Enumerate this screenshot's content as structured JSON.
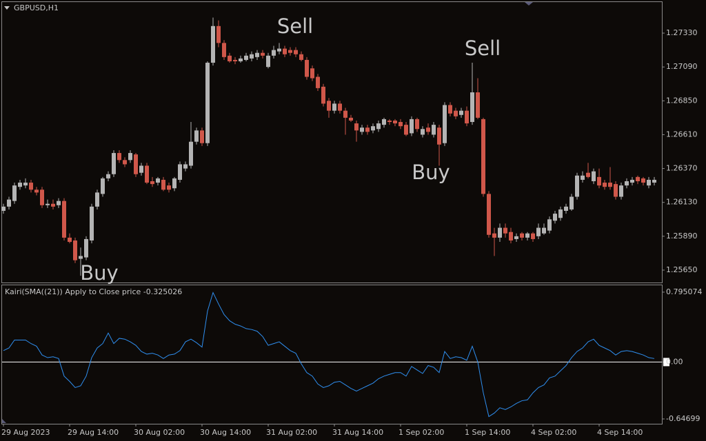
{
  "chart_data": [
    {
      "type": "candlestick",
      "title": "GBPUSD,H1",
      "categories": [
        "29 Aug 2023",
        null,
        null,
        null,
        null,
        null,
        null,
        null,
        null,
        null,
        null,
        null,
        "29 Aug 14:00",
        null,
        null,
        null,
        null,
        null,
        null,
        null,
        null,
        null,
        null,
        null,
        "30 Aug 02:00",
        null,
        null,
        null,
        null,
        null,
        null,
        null,
        null,
        null,
        null,
        null,
        "30 Aug 14:00",
        null,
        null,
        null,
        null,
        null,
        null,
        null,
        null,
        null,
        null,
        null,
        "31 Aug 02:00",
        null,
        null,
        null,
        null,
        null,
        null,
        null,
        null,
        null,
        null,
        null,
        "31 Aug 14:00",
        null,
        null,
        null,
        null,
        null,
        null,
        null,
        null,
        null,
        null,
        null,
        "1 Sep 02:00",
        null,
        null,
        null,
        null,
        null,
        null,
        null,
        null,
        null,
        null,
        null,
        "1 Sep 14:00",
        null,
        null,
        null,
        null,
        null,
        null,
        null,
        null,
        null,
        null,
        null,
        "4 Sep 02:00",
        null,
        null,
        null,
        null,
        null,
        null,
        null,
        null,
        null,
        null,
        null,
        "4 Sep 14:00",
        null,
        null,
        null,
        null,
        null,
        null,
        null,
        null,
        null,
        null
      ],
      "open": [
        1.2607,
        1.261,
        1.2614,
        1.2624,
        1.2625,
        1.2627,
        1.2622,
        1.2622,
        1.2611,
        1.2612,
        1.2611,
        1.2614,
        1.2588,
        1.2586,
        1.2573,
        1.2574,
        1.2586,
        1.261,
        1.2619,
        1.263,
        1.2633,
        1.2648,
        1.2643,
        1.2643,
        1.2647,
        1.2634,
        1.2639,
        1.2628,
        1.2627,
        1.2629,
        1.2625,
        1.2623,
        1.2629,
        1.2637,
        1.2639,
        1.2656,
        1.2664,
        1.2655,
        1.2712,
        1.2738,
        1.2726,
        1.2717,
        1.2714,
        1.2713,
        1.2714,
        1.2715,
        1.2716,
        1.2719,
        1.2709,
        1.2717,
        1.272,
        1.2722,
        1.2721,
        1.2721,
        1.2718,
        1.2714,
        1.2708,
        1.2702,
        1.2695,
        1.2685,
        1.2678,
        1.2683,
        1.2678,
        1.2673,
        1.2669,
        1.2663,
        1.2666,
        1.2664,
        1.2665,
        1.2668,
        1.2671,
        1.2671,
        1.267,
        1.2668,
        1.2662,
        1.2672,
        1.2661,
        1.2666,
        1.2661,
        1.2666,
        1.2655,
        1.2682,
        1.2678,
        1.2675,
        1.2678,
        1.267,
        1.2691,
        1.2672,
        1.2619,
        1.2591,
        1.2588,
        1.2595,
        1.2592,
        1.2587,
        1.2591,
        1.2588,
        1.2591,
        1.2589,
        1.2591,
        1.2593,
        1.26,
        1.2602,
        1.2607,
        1.2608,
        1.2617,
        1.2629,
        1.2634,
        1.2628,
        1.2631,
        1.2627,
        1.2627,
        1.2626,
        1.2617,
        1.2625,
        1.2627,
        1.2631,
        1.263,
        1.2625,
        1.2627
      ],
      "high": [
        1.2612,
        1.2617,
        1.2627,
        1.2629,
        1.263,
        1.2629,
        1.2624,
        1.2624,
        1.2615,
        1.2615,
        1.2616,
        1.2616,
        1.2591,
        1.2588,
        1.2581,
        1.2589,
        1.2612,
        1.2622,
        1.2631,
        1.2635,
        1.265,
        1.265,
        1.2645,
        1.265,
        1.2648,
        1.2641,
        1.2641,
        1.2631,
        1.2631,
        1.2631,
        1.2627,
        1.2631,
        1.2642,
        1.2642,
        1.267,
        1.2666,
        1.2666,
        1.2713,
        1.2744,
        1.2742,
        1.2728,
        1.2719,
        1.2716,
        1.2717,
        1.2719,
        1.272,
        1.2721,
        1.2721,
        1.2719,
        1.2724,
        1.2726,
        1.2724,
        1.2723,
        1.2723,
        1.272,
        1.2716,
        1.271,
        1.2704,
        1.2697,
        1.2687,
        1.2685,
        1.2685,
        1.268,
        1.2675,
        1.2671,
        1.2668,
        1.2668,
        1.2669,
        1.2671,
        1.2673,
        1.2672,
        1.2672,
        1.2672,
        1.267,
        1.2674,
        1.2673,
        1.2667,
        1.2669,
        1.267,
        1.2668,
        1.2684,
        1.2684,
        1.268,
        1.268,
        1.2681,
        1.2712,
        1.2701,
        1.2673,
        1.2621,
        1.2595,
        1.2598,
        1.2598,
        1.2595,
        1.2591,
        1.2592,
        1.2592,
        1.2592,
        1.2598,
        1.2598,
        1.2603,
        1.2607,
        1.261,
        1.2612,
        1.2619,
        1.2634,
        1.2635,
        1.2641,
        1.2637,
        1.2637,
        1.2629,
        1.2638,
        1.2628,
        1.2627,
        1.263,
        1.2631,
        1.2632,
        1.2631,
        1.2631,
        1.2631
      ],
      "low": [
        1.2605,
        1.2608,
        1.2612,
        1.2622,
        1.2623,
        1.262,
        1.2618,
        1.2609,
        1.2609,
        1.2608,
        1.2609,
        1.2586,
        1.2584,
        1.257,
        1.2561,
        1.2572,
        1.2584,
        1.2608,
        1.2617,
        1.2628,
        1.2631,
        1.2641,
        1.2638,
        1.2641,
        1.2631,
        1.2632,
        1.2626,
        1.2624,
        1.2625,
        1.2621,
        1.262,
        1.2621,
        1.2627,
        1.2635,
        1.2637,
        1.2654,
        1.2653,
        1.2653,
        1.271,
        1.2723,
        1.2714,
        1.2712,
        1.2711,
        1.2712,
        1.2713,
        1.2713,
        1.2714,
        1.2715,
        1.2708,
        1.2715,
        1.2718,
        1.2716,
        1.2717,
        1.2716,
        1.2713,
        1.27,
        1.2699,
        1.2692,
        1.2681,
        1.2673,
        1.2676,
        1.2676,
        1.2661,
        1.267,
        1.2656,
        1.2661,
        1.2661,
        1.2662,
        1.2663,
        1.2666,
        1.2668,
        1.2667,
        1.2665,
        1.266,
        1.266,
        1.2663,
        1.2659,
        1.2661,
        1.2659,
        1.2639,
        1.2653,
        1.2674,
        1.2672,
        1.2673,
        1.2667,
        1.2668,
        1.2672,
        1.2617,
        1.2588,
        1.2575,
        1.2585,
        1.2588,
        1.2584,
        1.2585,
        1.2586,
        1.2586,
        1.2585,
        1.2587,
        1.259,
        1.2591,
        1.2598,
        1.26,
        1.2605,
        1.2607,
        1.2615,
        1.2627,
        1.263,
        1.2626,
        1.2623,
        1.2622,
        1.2622,
        1.2615,
        1.2615,
        1.2623,
        1.2625,
        1.2626,
        1.2625,
        1.2623,
        1.2625
      ],
      "close": [
        1.261,
        1.2615,
        1.2625,
        1.2627,
        1.2627,
        1.2622,
        1.262,
        1.2611,
        1.2612,
        1.261,
        1.2614,
        1.2588,
        1.2585,
        1.2572,
        1.2575,
        1.2587,
        1.261,
        1.262,
        1.263,
        1.2633,
        1.2648,
        1.2643,
        1.264,
        1.2648,
        1.2633,
        1.2639,
        1.2627,
        1.2626,
        1.263,
        1.2622,
        1.2622,
        1.263,
        1.264,
        1.264,
        1.2656,
        1.2664,
        1.2655,
        1.2712,
        1.2738,
        1.2726,
        1.2716,
        1.2713,
        1.2713,
        1.2715,
        1.2717,
        1.2718,
        1.2719,
        1.2717,
        1.2717,
        1.2721,
        1.2722,
        1.2718,
        1.2719,
        1.2718,
        1.2714,
        1.2702,
        1.2701,
        1.2694,
        1.2683,
        1.2678,
        1.2683,
        1.2678,
        1.2673,
        1.2671,
        1.2664,
        1.2666,
        1.2663,
        1.2667,
        1.2669,
        1.2672,
        1.267,
        1.2669,
        1.2667,
        1.2661,
        1.2672,
        1.2665,
        1.2665,
        1.2663,
        1.2668,
        1.2654,
        1.2682,
        1.2676,
        1.2674,
        1.2678,
        1.2669,
        1.2691,
        1.2673,
        1.2619,
        1.259,
        1.2588,
        1.2595,
        1.2591,
        1.2586,
        1.2589,
        1.2588,
        1.2591,
        1.2587,
        1.2595,
        1.2595,
        1.2601,
        1.2605,
        1.2608,
        1.261,
        1.2617,
        1.2632,
        1.2632,
        1.2631,
        1.2635,
        1.2625,
        1.2624,
        1.2624,
        1.2617,
        1.2625,
        1.2628,
        1.2629,
        1.2628,
        1.2627,
        1.2629,
        1.2629
      ],
      "up_color": "#b4b4b4",
      "down_color": "#d0574a",
      "ylim": [
        1.25562,
        1.2755
      ],
      "yticks": [
        {
          "value": 1.2733,
          "label": "1.27330"
        },
        {
          "value": 1.2709,
          "label": "1.27090"
        },
        {
          "value": 1.2685,
          "label": "1.26850"
        },
        {
          "value": 1.2661,
          "label": "1.26610"
        },
        {
          "value": 1.2637,
          "label": "1.26370"
        },
        {
          "value": 1.2613,
          "label": "1.26130"
        },
        {
          "value": 1.2589,
          "label": "1.25890"
        },
        {
          "value": 1.2565,
          "label": "1.25650"
        }
      ],
      "annotations": [
        "Sell",
        "Sell",
        "Buy",
        "Buy"
      ]
    },
    {
      "type": "line",
      "title": "Kairi(SMA((21)) Apply to Close price -0.325026",
      "values": [
        0.13,
        0.16,
        0.25,
        0.25,
        0.25,
        0.21,
        0.18,
        0.08,
        0.05,
        0.06,
        0.04,
        -0.16,
        -0.22,
        -0.29,
        -0.27,
        -0.16,
        0.05,
        0.16,
        0.21,
        0.33,
        0.21,
        0.27,
        0.26,
        0.23,
        0.19,
        0.12,
        0.09,
        0.1,
        0.08,
        0.04,
        0.08,
        0.09,
        0.13,
        0.23,
        0.26,
        0.22,
        0.17,
        0.58,
        0.79,
        0.66,
        0.54,
        0.47,
        0.43,
        0.41,
        0.38,
        0.37,
        0.35,
        0.29,
        0.19,
        0.21,
        0.23,
        0.18,
        0.13,
        0.1,
        -0.02,
        -0.12,
        -0.16,
        -0.25,
        -0.29,
        -0.27,
        -0.23,
        -0.22,
        -0.26,
        -0.3,
        -0.33,
        -0.3,
        -0.27,
        -0.24,
        -0.19,
        -0.16,
        -0.14,
        -0.12,
        -0.12,
        -0.16,
        -0.05,
        -0.09,
        -0.13,
        -0.04,
        -0.06,
        -0.12,
        0.12,
        0.04,
        0.06,
        0.05,
        0.02,
        0.18,
        0.0,
        -0.35,
        -0.62,
        -0.58,
        -0.52,
        -0.54,
        -0.51,
        -0.47,
        -0.44,
        -0.43,
        -0.35,
        -0.29,
        -0.26,
        -0.18,
        -0.16,
        -0.1,
        -0.04,
        0.05,
        0.12,
        0.16,
        0.23,
        0.26,
        0.19,
        0.16,
        0.13,
        0.08,
        0.12,
        0.13,
        0.12,
        0.1,
        0.08,
        0.05,
        0.04
      ],
      "color": "#2f8ff0",
      "level_color": "#ffffff",
      "levels": [
        0
      ],
      "ylim": [
        -0.702,
        0.873
      ],
      "yticks": [
        0.795074,
        {
          "value": 0,
          "label": "0.00"
        },
        -0.64699
      ]
    }
  ]
}
